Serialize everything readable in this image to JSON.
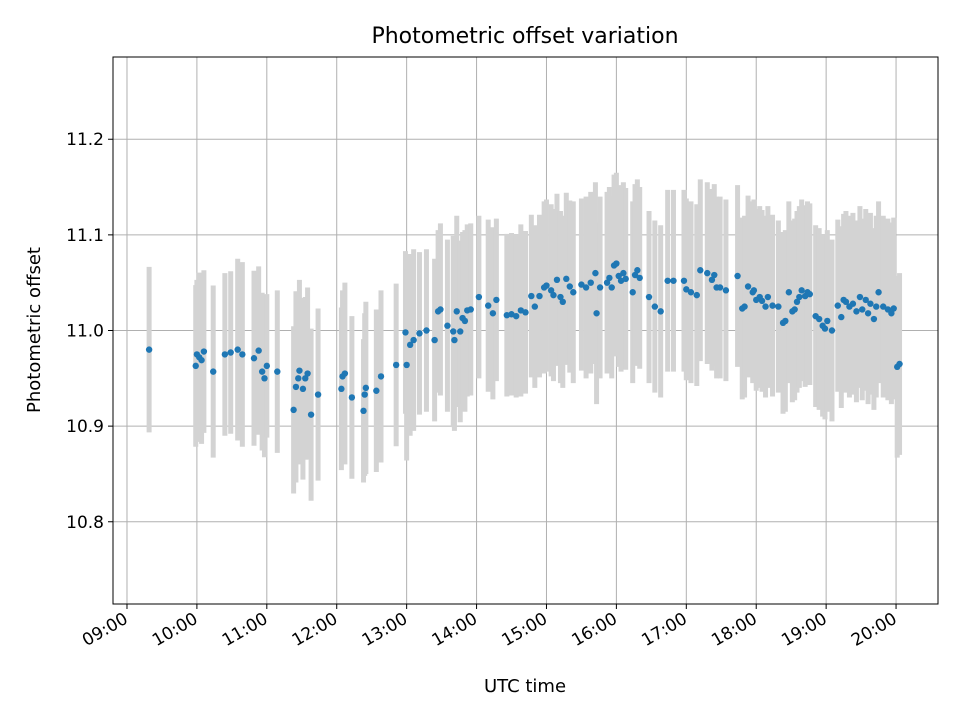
{
  "chart_data": {
    "type": "scatter",
    "title": "Photometric offset variation",
    "xlabel": "UTC time",
    "ylabel": "Photometric offset",
    "x_ticks": [
      "09:00",
      "10:00",
      "11:00",
      "12:00",
      "13:00",
      "14:00",
      "15:00",
      "16:00",
      "17:00",
      "18:00",
      "19:00",
      "20:00"
    ],
    "y_ticks": [
      10.8,
      10.9,
      11.0,
      11.1,
      11.2
    ],
    "xlim": [
      "08:48",
      "20:36"
    ],
    "ylim": [
      10.714,
      11.286
    ],
    "grid": true,
    "error_bars": true,
    "points": [
      [
        "09:19",
        10.98,
        0.173
      ],
      [
        "09:59",
        10.963,
        0.169
      ],
      [
        "10:00",
        10.975,
        0.156
      ],
      [
        "10:02",
        10.972,
        0.177
      ],
      [
        "10:04",
        10.969,
        0.175
      ],
      [
        "10:06",
        10.978,
        0.17
      ],
      [
        "10:14",
        10.957,
        0.18
      ],
      [
        "10:24",
        10.975,
        0.17
      ],
      [
        "10:29",
        10.977,
        0.17
      ],
      [
        "10:35",
        10.98,
        0.19
      ],
      [
        "10:39",
        10.975,
        0.193
      ],
      [
        "10:49",
        10.971,
        0.183
      ],
      [
        "10:53",
        10.979,
        0.176
      ],
      [
        "10:56",
        10.957,
        0.165
      ],
      [
        "10:58",
        10.95,
        0.165
      ],
      [
        "11:00",
        10.963,
        0.15
      ],
      [
        "11:09",
        10.957,
        0.17
      ],
      [
        "11:23",
        10.917,
        0.175
      ],
      [
        "11:25",
        10.941,
        0.2
      ],
      [
        "11:27",
        10.95,
        0.18
      ],
      [
        "11:28",
        10.958,
        0.19
      ],
      [
        "11:31",
        10.939,
        0.19
      ],
      [
        "11:33",
        10.95,
        0.17
      ],
      [
        "11:35",
        10.955,
        0.18
      ],
      [
        "11:38",
        10.912,
        0.18
      ],
      [
        "11:44",
        10.933,
        0.18
      ],
      [
        "12:04",
        10.939,
        0.17
      ],
      [
        "12:05",
        10.952,
        0.18
      ],
      [
        "12:07",
        10.955,
        0.19
      ],
      [
        "12:13",
        10.93,
        0.17
      ],
      [
        "12:23",
        10.916,
        0.15
      ],
      [
        "12:24",
        10.933,
        0.17
      ],
      [
        "12:25",
        10.94,
        0.18
      ],
      [
        "12:34",
        10.937,
        0.17
      ],
      [
        "12:38",
        10.952,
        0.18
      ],
      [
        "12:51",
        10.964,
        0.17
      ],
      [
        "12:59",
        10.998,
        0.17
      ],
      [
        "13:00",
        10.964,
        0.2
      ],
      [
        "13:03",
        10.985,
        0.19
      ],
      [
        "13:06",
        10.99,
        0.19
      ],
      [
        "13:11",
        10.997,
        0.17
      ],
      [
        "13:17",
        11.0,
        0.17
      ],
      [
        "13:24",
        10.99,
        0.17
      ],
      [
        "13:27",
        11.02,
        0.17
      ],
      [
        "13:29",
        11.022,
        0.18
      ],
      [
        "13:35",
        11.005,
        0.18
      ],
      [
        "13:40",
        10.999,
        0.2
      ],
      [
        "13:41",
        10.99,
        0.19
      ],
      [
        "13:43",
        11.02,
        0.2
      ],
      [
        "13:46",
        10.999,
        0.19
      ],
      [
        "13:48",
        11.013,
        0.18
      ],
      [
        "13:50",
        11.01,
        0.19
      ],
      [
        "13:52",
        11.021,
        0.18
      ],
      [
        "13:55",
        11.022,
        0.18
      ],
      [
        "14:02",
        11.035,
        0.17
      ],
      [
        "14:10",
        11.026,
        0.18
      ],
      [
        "14:14",
        11.018,
        0.18
      ],
      [
        "14:17",
        11.032,
        0.17
      ],
      [
        "14:26",
        11.016,
        0.17
      ],
      [
        "14:30",
        11.017,
        0.17
      ],
      [
        "14:34",
        11.015,
        0.17
      ],
      [
        "14:38",
        11.021,
        0.18
      ],
      [
        "14:42",
        11.019,
        0.17
      ],
      [
        "14:47",
        11.036,
        0.17
      ],
      [
        "14:50",
        11.025,
        0.17
      ],
      [
        "14:54",
        11.036,
        0.17
      ],
      [
        "14:58",
        11.045,
        0.18
      ],
      [
        "15:00",
        11.047,
        0.18
      ],
      [
        "15:04",
        11.042,
        0.18
      ],
      [
        "15:06",
        11.037,
        0.18
      ],
      [
        "15:09",
        11.053,
        0.18
      ],
      [
        "15:12",
        11.035,
        0.18
      ],
      [
        "15:14",
        11.03,
        0.18
      ],
      [
        "15:17",
        11.054,
        0.18
      ],
      [
        "15:20",
        11.046,
        0.18
      ],
      [
        "15:23",
        11.04,
        0.19
      ],
      [
        "15:30",
        11.048,
        0.18
      ],
      [
        "15:34",
        11.045,
        0.19
      ],
      [
        "15:38",
        11.05,
        0.19
      ],
      [
        "15:42",
        11.06,
        0.19
      ],
      [
        "15:43",
        11.018,
        0.19
      ],
      [
        "15:46",
        11.045,
        0.19
      ],
      [
        "15:52",
        11.05,
        0.19
      ],
      [
        "15:54",
        11.055,
        0.19
      ],
      [
        "15:56",
        11.045,
        0.19
      ],
      [
        "15:58",
        11.068,
        0.19
      ],
      [
        "16:00",
        11.07,
        0.19
      ],
      [
        "16:02",
        11.057,
        0.19
      ],
      [
        "16:04",
        11.052,
        0.19
      ],
      [
        "16:06",
        11.06,
        0.19
      ],
      [
        "16:08",
        11.054,
        0.19
      ],
      [
        "16:14",
        11.04,
        0.19
      ],
      [
        "16:16",
        11.058,
        0.19
      ],
      [
        "16:18",
        11.063,
        0.19
      ],
      [
        "16:20",
        11.055,
        0.19
      ],
      [
        "16:28",
        11.035,
        0.18
      ],
      [
        "16:33",
        11.025,
        0.18
      ],
      [
        "16:38",
        11.02,
        0.18
      ],
      [
        "16:44",
        11.052,
        0.19
      ],
      [
        "16:49",
        11.052,
        0.19
      ],
      [
        "16:58",
        11.052,
        0.19
      ],
      [
        "17:00",
        11.043,
        0.19
      ],
      [
        "17:04",
        11.04,
        0.19
      ],
      [
        "17:09",
        11.037,
        0.19
      ],
      [
        "17:12",
        11.063,
        0.19
      ],
      [
        "17:18",
        11.06,
        0.19
      ],
      [
        "17:22",
        11.053,
        0.19
      ],
      [
        "17:24",
        11.058,
        0.19
      ],
      [
        "17:26",
        11.045,
        0.19
      ],
      [
        "17:29",
        11.045,
        0.19
      ],
      [
        "17:34",
        11.042,
        0.19
      ],
      [
        "17:44",
        11.057,
        0.19
      ],
      [
        "17:48",
        11.023,
        0.19
      ],
      [
        "17:50",
        11.025,
        0.19
      ],
      [
        "17:53",
        11.046,
        0.19
      ],
      [
        "17:57",
        11.04,
        0.19
      ],
      [
        "17:58",
        11.042,
        0.19
      ],
      [
        "18:00",
        11.032,
        0.19
      ],
      [
        "18:03",
        11.035,
        0.19
      ],
      [
        "18:05",
        11.031,
        0.19
      ],
      [
        "18:08",
        11.025,
        0.19
      ],
      [
        "18:10",
        11.035,
        0.19
      ],
      [
        "18:14",
        11.026,
        0.19
      ],
      [
        "18:19",
        11.025,
        0.18
      ],
      [
        "18:23",
        11.008,
        0.19
      ],
      [
        "18:25",
        11.01,
        0.19
      ],
      [
        "18:28",
        11.04,
        0.19
      ],
      [
        "18:31",
        11.02,
        0.19
      ],
      [
        "18:33",
        11.022,
        0.19
      ],
      [
        "18:35",
        11.03,
        0.19
      ],
      [
        "18:37",
        11.035,
        0.19
      ],
      [
        "18:39",
        11.042,
        0.19
      ],
      [
        "18:42",
        11.036,
        0.19
      ],
      [
        "18:44",
        11.04,
        0.19
      ],
      [
        "18:46",
        11.038,
        0.19
      ],
      [
        "18:51",
        11.015,
        0.19
      ],
      [
        "18:54",
        11.012,
        0.19
      ],
      [
        "18:57",
        11.005,
        0.19
      ],
      [
        "18:59",
        11.002,
        0.19
      ],
      [
        "19:01",
        11.01,
        0.19
      ],
      [
        "19:05",
        11.0,
        0.19
      ],
      [
        "19:10",
        11.026,
        0.18
      ],
      [
        "19:13",
        11.014,
        0.19
      ],
      [
        "19:15",
        11.032,
        0.18
      ],
      [
        "19:17",
        11.03,
        0.19
      ],
      [
        "19:20",
        11.025,
        0.19
      ],
      [
        "19:23",
        11.028,
        0.19
      ],
      [
        "19:26",
        11.02,
        0.19
      ],
      [
        "19:29",
        11.035,
        0.19
      ],
      [
        "19:31",
        11.022,
        0.19
      ],
      [
        "19:34",
        11.032,
        0.19
      ],
      [
        "19:36",
        11.018,
        0.19
      ],
      [
        "19:38",
        11.028,
        0.19
      ],
      [
        "19:41",
        11.012,
        0.19
      ],
      [
        "19:43",
        11.025,
        0.19
      ],
      [
        "19:45",
        11.04,
        0.19
      ],
      [
        "19:49",
        11.025,
        0.19
      ],
      [
        "19:53",
        11.022,
        0.19
      ],
      [
        "19:56",
        11.018,
        0.19
      ],
      [
        "19:58",
        11.023,
        0.19
      ],
      [
        "20:01",
        10.962,
        0.19
      ],
      [
        "20:03",
        10.965,
        0.19
      ]
    ]
  },
  "colors": {
    "points": "#1f77b4",
    "error_bars": "#d3d3d3",
    "grid": "#b0b0b0"
  }
}
